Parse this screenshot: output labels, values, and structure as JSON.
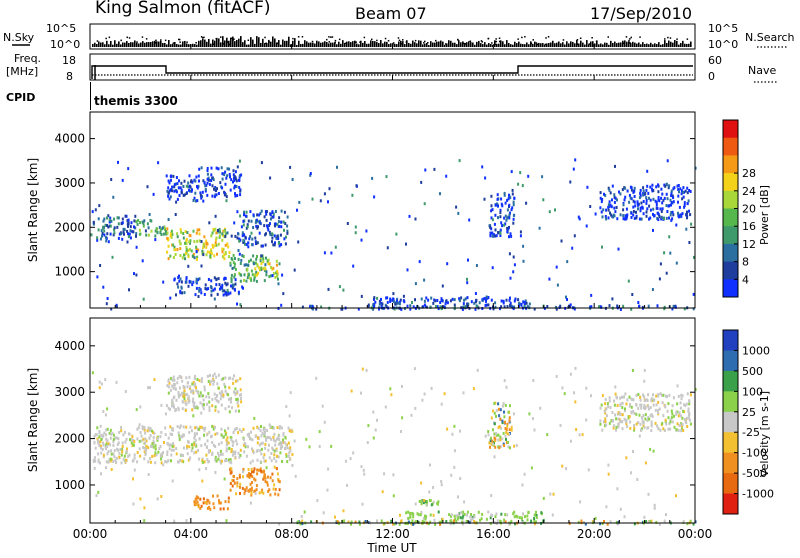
{
  "header": {
    "title": "King Salmon (fitACF)",
    "beam": "Beam 07",
    "date": "17/Sep/2010"
  },
  "status_panel": {
    "nsky_label": "N.Sky",
    "nsky_ticks": [
      "10^5",
      "10^0"
    ],
    "nsearch_label": "N.Search",
    "freq_label_line1": "Freq.",
    "freq_label_line2": "[MHz]",
    "freq_ticks": [
      "18",
      "8"
    ],
    "nave_label": "Nave",
    "nave_ticks": [
      "60",
      "0"
    ],
    "cpid_label": "CPID",
    "cpid_value": "themis 3300"
  },
  "chart_data": [
    {
      "type": "heatmap",
      "name": "power",
      "ylabel": "Slant Range [km]",
      "yticks": [
        1000,
        2000,
        3000,
        4000
      ],
      "ylim": [
        180,
        4600
      ],
      "xticks": [
        "00:00",
        "04:00",
        "08:00",
        "12:00",
        "16:00",
        "20:00",
        "00:00"
      ],
      "xlim_hours": [
        0,
        24
      ],
      "colorbar_label": "Power [dB]",
      "colorbar_ticks": [
        "4",
        "8",
        "12",
        "16",
        "20",
        "24",
        "28"
      ],
      "colorbar_colors": [
        "#1030ff",
        "#1f3d9c",
        "#2a6fa0",
        "#3e9a6a",
        "#56b84c",
        "#a9d73a",
        "#f4d21a",
        "#f49a16",
        "#ef5a12",
        "#e01010"
      ],
      "regions": [
        {
          "t": [
            0.1,
            1.8
          ],
          "r": [
            1700,
            2300
          ],
          "level": "mixed_low"
        },
        {
          "t": [
            1.8,
            3.0
          ],
          "r": [
            1800,
            2200
          ],
          "level": "mid"
        },
        {
          "t": [
            3.0,
            5.5
          ],
          "r": [
            1300,
            2000
          ],
          "level": "high"
        },
        {
          "t": [
            3.0,
            4.5
          ],
          "r": [
            2600,
            3200
          ],
          "level": "low"
        },
        {
          "t": [
            4.5,
            6.0
          ],
          "r": [
            2700,
            3400
          ],
          "level": "low"
        },
        {
          "t": [
            5.8,
            7.8
          ],
          "r": [
            1600,
            2400
          ],
          "level": "mixed_low"
        },
        {
          "t": [
            5.5,
            7.0
          ],
          "r": [
            800,
            1400
          ],
          "level": "mid"
        },
        {
          "t": [
            6.5,
            7.5
          ],
          "r": [
            900,
            1300
          ],
          "level": "high"
        },
        {
          "t": [
            3.3,
            6.0
          ],
          "r": [
            500,
            900
          ],
          "level": "low"
        },
        {
          "t": [
            15.8,
            16.8
          ],
          "r": [
            1800,
            2800
          ],
          "level": "low"
        },
        {
          "t": [
            20.2,
            23.8
          ],
          "r": [
            2200,
            3000
          ],
          "level": "low"
        },
        {
          "t": [
            11.0,
            17.5
          ],
          "r": [
            200,
            450
          ],
          "level": "low"
        },
        {
          "t": [
            8.0,
            24.0
          ],
          "r": [
            180,
            260
          ],
          "level": "mixed_low"
        }
      ]
    },
    {
      "type": "heatmap",
      "name": "velocity",
      "ylabel": "Slant Range [km]",
      "yticks": [
        1000,
        2000,
        3000,
        4000
      ],
      "ylim": [
        180,
        4600
      ],
      "xticks": [
        "00:00",
        "04:00",
        "08:00",
        "12:00",
        "16:00",
        "20:00",
        "00:00"
      ],
      "xlim_hours": [
        0,
        24
      ],
      "xlabel": "Time UT",
      "colorbar_label": "Velocity [m s-1]",
      "colorbar_ticks": [
        "1000",
        "500",
        "100",
        "25",
        "-25",
        "-100",
        "-500",
        "-1000"
      ],
      "colorbar_colors": [
        "#2040c0",
        "#2e6db0",
        "#3aa04a",
        "#8bd14a",
        "#c8c8c8",
        "#f2c030",
        "#f09020",
        "#e86a10",
        "#e02010"
      ],
      "regions": [
        {
          "t": [
            0.1,
            8.0
          ],
          "r": [
            1500,
            2300
          ],
          "level": "grey"
        },
        {
          "t": [
            3.0,
            6.0
          ],
          "r": [
            2600,
            3400
          ],
          "level": "grey"
        },
        {
          "t": [
            5.5,
            7.5
          ],
          "r": [
            800,
            1400
          ],
          "level": "orange"
        },
        {
          "t": [
            4.0,
            5.5
          ],
          "r": [
            500,
            800
          ],
          "level": "orange"
        },
        {
          "t": [
            15.8,
            16.8
          ],
          "r": [
            1800,
            2800
          ],
          "level": "mixed"
        },
        {
          "t": [
            20.2,
            23.8
          ],
          "r": [
            2200,
            3000
          ],
          "level": "grey"
        },
        {
          "t": [
            12.5,
            18.0
          ],
          "r": [
            200,
            450
          ],
          "level": "green"
        },
        {
          "t": [
            13.0,
            13.8
          ],
          "r": [
            600,
            700
          ],
          "level": "green"
        },
        {
          "t": [
            8.0,
            24.0
          ],
          "r": [
            180,
            260
          ],
          "level": "mixed"
        }
      ]
    }
  ]
}
